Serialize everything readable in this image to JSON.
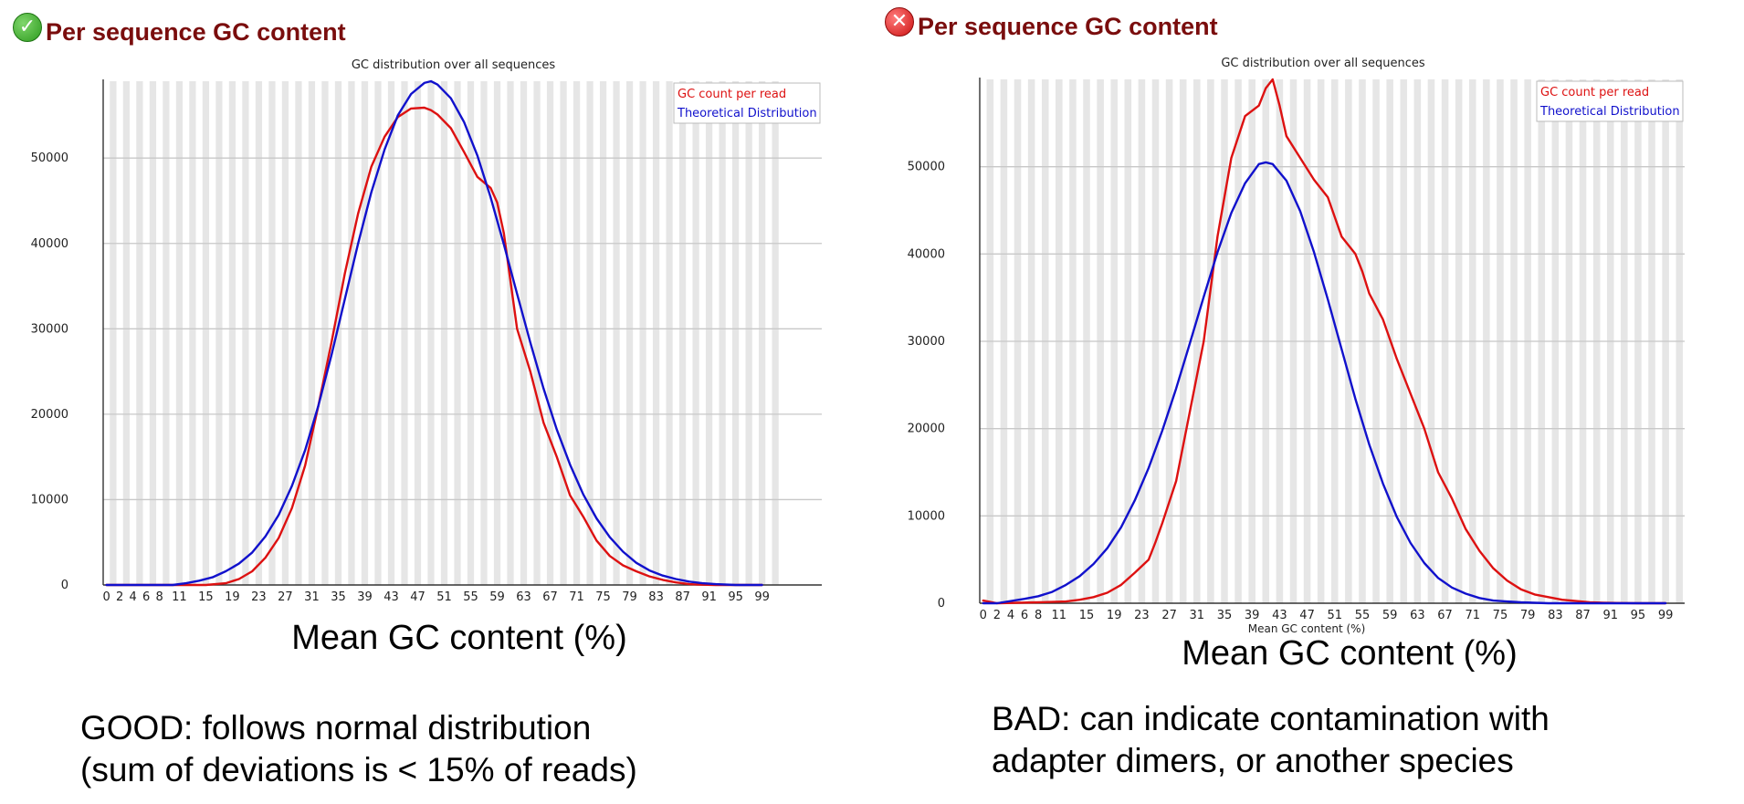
{
  "panels": [
    {
      "id": "good",
      "status": "pass",
      "status_icon": "check-circle-icon",
      "header_title": "Per sequence GC content",
      "caption_xlabel": "Mean GC content (%)",
      "note_lines": [
        "GOOD: follows normal distribution",
        "(sum of deviations is < 15% of reads)"
      ]
    },
    {
      "id": "bad",
      "status": "fail",
      "status_icon": "x-circle-icon",
      "header_title": "Per sequence GC content",
      "caption_xlabel": "Mean GC content (%)",
      "note_lines": [
        "BAD: can indicate contamination with",
        "adapter dimers, or another species"
      ]
    }
  ],
  "colors": {
    "gc_count": "#dd1111",
    "theoretical": "#1111cc",
    "title_text": "#7a0d0d",
    "stripe": "#e6e6e6",
    "gridline": "#c8c8c8"
  },
  "chart_data": [
    {
      "type": "line",
      "title": "GC distribution over all sequences",
      "xlabel": "",
      "ylabel": "",
      "x_tick_labels": [
        "0",
        "2",
        "4",
        "6",
        "8",
        "11",
        "15",
        "19",
        "23",
        "27",
        "31",
        "35",
        "39",
        "43",
        "47",
        "51",
        "55",
        "59",
        "63",
        "67",
        "71",
        "75",
        "79",
        "83",
        "87",
        "91",
        "95",
        "99"
      ],
      "ylim": [
        0,
        59000
      ],
      "y_ticks": [
        0,
        10000,
        20000,
        30000,
        40000,
        50000
      ],
      "grid": true,
      "legend_position": "top-right",
      "series": [
        {
          "name": "GC count per read",
          "x": [
            0,
            10,
            15,
            18,
            20,
            22,
            24,
            26,
            28,
            30,
            32,
            34,
            36,
            38,
            40,
            42,
            44,
            46,
            48,
            49,
            50,
            52,
            54,
            56,
            58,
            59,
            60,
            62,
            64,
            66,
            68,
            70,
            72,
            74,
            76,
            78,
            80,
            82,
            84,
            86,
            88,
            90,
            92,
            95,
            99
          ],
          "y": [
            0,
            0,
            0,
            200,
            700,
            1600,
            3200,
            5500,
            9000,
            14000,
            21000,
            28500,
            36500,
            43500,
            49000,
            52500,
            54800,
            55800,
            55900,
            55600,
            55100,
            53500,
            50700,
            47800,
            46500,
            44800,
            41200,
            30000,
            25000,
            19000,
            15000,
            10500,
            8000,
            5200,
            3400,
            2300,
            1600,
            1000,
            600,
            300,
            100,
            30,
            0,
            0,
            0
          ]
        },
        {
          "name": "Theoretical Distribution",
          "x": [
            0,
            10,
            12,
            14,
            16,
            18,
            20,
            22,
            24,
            26,
            28,
            30,
            32,
            34,
            36,
            38,
            40,
            42,
            44,
            46,
            48,
            49,
            50,
            52,
            54,
            56,
            58,
            60,
            62,
            64,
            66,
            68,
            70,
            72,
            74,
            76,
            78,
            80,
            82,
            84,
            86,
            88,
            90,
            92,
            95,
            99
          ],
          "y": [
            0,
            0,
            200,
            500,
            900,
            1600,
            2500,
            3800,
            5700,
            8200,
            11600,
            15800,
            21000,
            27000,
            33500,
            40000,
            46000,
            51000,
            55000,
            57500,
            58800,
            59000,
            58600,
            57000,
            54200,
            50300,
            45400,
            39900,
            34100,
            28400,
            23000,
            18200,
            14100,
            10600,
            7800,
            5600,
            3900,
            2600,
            1700,
            1100,
            700,
            400,
            200,
            100,
            0,
            0
          ]
        }
      ]
    },
    {
      "type": "line",
      "title": "GC distribution over all sequences",
      "xlabel": "Mean GC content (%)",
      "ylabel": "",
      "x_tick_labels": [
        "0",
        "2",
        "4",
        "6",
        "8",
        "11",
        "15",
        "19",
        "23",
        "27",
        "31",
        "35",
        "39",
        "43",
        "47",
        "51",
        "55",
        "59",
        "63",
        "67",
        "71",
        "75",
        "79",
        "83",
        "87",
        "91",
        "95",
        "99"
      ],
      "ylim": [
        0,
        60000
      ],
      "y_ticks": [
        0,
        10000,
        20000,
        30000,
        40000,
        50000
      ],
      "grid": true,
      "legend_position": "top-right",
      "series": [
        {
          "name": "GC count per read",
          "x": [
            0,
            2,
            8,
            12,
            14,
            16,
            18,
            20,
            22,
            24,
            25,
            26,
            28,
            30,
            32,
            34,
            36,
            38,
            40,
            41,
            42,
            43,
            44,
            46,
            48,
            50,
            52,
            54,
            55,
            56,
            58,
            60,
            62,
            64,
            66,
            68,
            70,
            72,
            74,
            76,
            78,
            80,
            82,
            84,
            86,
            88,
            90,
            95,
            99
          ],
          "y": [
            300,
            0,
            100,
            200,
            400,
            700,
            1200,
            2100,
            3500,
            5000,
            7000,
            9200,
            14000,
            22000,
            30000,
            42000,
            51000,
            55800,
            57000,
            59000,
            60000,
            57000,
            53500,
            51000,
            48500,
            46500,
            42000,
            40000,
            38000,
            35500,
            32500,
            28000,
            24000,
            20000,
            15000,
            12000,
            8500,
            6000,
            4000,
            2600,
            1600,
            1000,
            700,
            400,
            250,
            100,
            50,
            0,
            0
          ]
        },
        {
          "name": "Theoretical Distribution",
          "x": [
            0,
            2,
            6,
            8,
            10,
            12,
            14,
            16,
            18,
            20,
            22,
            24,
            26,
            28,
            30,
            32,
            34,
            36,
            38,
            40,
            41,
            42,
            44,
            46,
            48,
            50,
            52,
            54,
            56,
            58,
            60,
            62,
            64,
            66,
            68,
            70,
            72,
            74,
            76,
            78,
            80,
            82,
            84,
            86,
            90,
            95,
            99
          ],
          "y": [
            0,
            0,
            500,
            800,
            1300,
            2100,
            3100,
            4500,
            6300,
            8700,
            11800,
            15500,
            19800,
            24600,
            29800,
            35100,
            40200,
            44700,
            48100,
            50300,
            50500,
            50300,
            48400,
            44900,
            40200,
            34800,
            29100,
            23400,
            18200,
            13700,
            9900,
            6900,
            4600,
            2900,
            1800,
            1100,
            600,
            300,
            200,
            100,
            50,
            0,
            0,
            0,
            0,
            0,
            0
          ]
        }
      ]
    }
  ]
}
